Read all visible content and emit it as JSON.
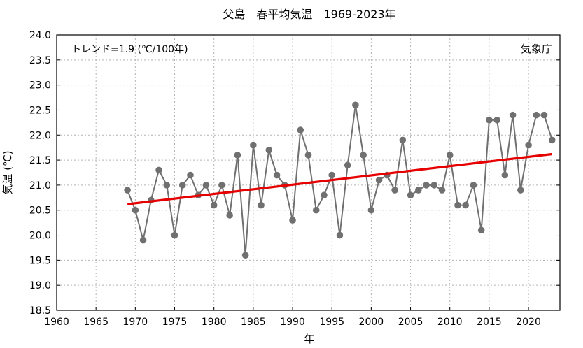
{
  "chart_data": {
    "type": "line",
    "title": "父島　春平均気温　1969-2023年",
    "xlabel": "年",
    "ylabel": "気温 (℃)",
    "xlim": [
      1960,
      2024
    ],
    "ylim": [
      18.5,
      24.0
    ],
    "xticks": [
      1960,
      1965,
      1970,
      1975,
      1980,
      1985,
      1990,
      1995,
      2000,
      2005,
      2010,
      2015,
      2020
    ],
    "yticks": [
      "18.5",
      "19.0",
      "19.5",
      "20.0",
      "20.5",
      "21.0",
      "21.5",
      "22.0",
      "22.5",
      "23.0",
      "23.5",
      "24.0"
    ],
    "grid": true,
    "trend_label": "トレンド=1.9 (℃/100年)",
    "source_label": "気象庁",
    "colors": {
      "series": "#707070",
      "trend": "#e60000"
    },
    "series": [
      {
        "x": [
          1969,
          1970,
          1971,
          1972,
          1973,
          1974,
          1975,
          1976,
          1977,
          1978,
          1979,
          1980,
          1981,
          1982,
          1983,
          1984,
          1985,
          1986,
          1987,
          1988,
          1989,
          1990,
          1991,
          1992,
          1993,
          1994,
          1995,
          1996,
          1997,
          1998,
          1999,
          2000,
          2001,
          2002,
          2003,
          2004,
          2005,
          2006,
          2007,
          2008,
          2009,
          2010,
          2011,
          2012,
          2013,
          2014,
          2015,
          2016,
          2017,
          2018,
          2019,
          2020,
          2021,
          2022,
          2023
        ],
        "values": [
          20.9,
          20.5,
          19.9,
          20.7,
          21.3,
          21.0,
          20.0,
          21.0,
          21.2,
          20.8,
          21.0,
          20.6,
          21.0,
          20.4,
          21.6,
          19.6,
          21.8,
          20.6,
          21.7,
          21.2,
          21.0,
          20.3,
          22.1,
          21.6,
          20.5,
          20.8,
          21.2,
          20.0,
          21.4,
          22.6,
          21.6,
          20.5,
          21.1,
          21.2,
          20.9,
          21.9,
          20.8,
          20.9,
          21.0,
          21.0,
          20.9,
          21.6,
          20.6,
          20.6,
          21.0,
          20.1,
          22.3,
          22.3,
          21.2,
          22.4,
          20.9,
          21.8,
          22.4,
          22.4,
          21.9
        ]
      }
    ],
    "trend": {
      "x": [
        1969,
        2023
      ],
      "values": [
        20.62,
        21.62
      ]
    }
  }
}
